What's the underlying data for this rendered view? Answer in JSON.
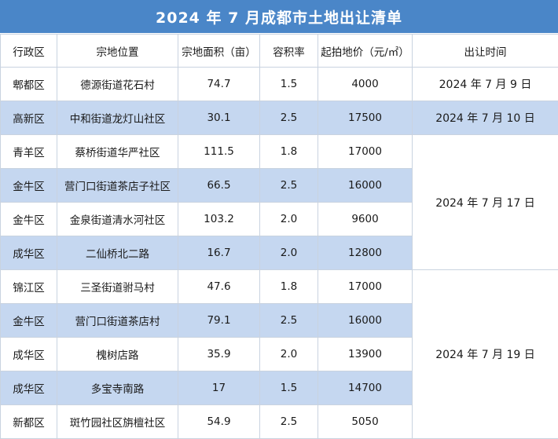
{
  "title": "2024 年 7 月成都市土地出让清单",
  "headers": [
    "行政区",
    "宗地位置",
    "宗地面积（亩）",
    "容积率",
    "起拍地价（元/㎡）",
    "出让时间"
  ],
  "rows": [
    {
      "district": "郫都区",
      "location": "德源街道花石村",
      "area": "74.7",
      "far": "1.5",
      "price": "4000"
    },
    {
      "district": "高新区",
      "location": "中和街道龙灯山社区",
      "area": "30.1",
      "far": "2.5",
      "price": "17500"
    },
    {
      "district": "青羊区",
      "location": "蔡桥街道华严社区",
      "area": "111.5",
      "far": "1.8",
      "price": "17000"
    },
    {
      "district": "金牛区",
      "location": "营门口街道茶店子社区",
      "area": "66.5",
      "far": "2.5",
      "price": "16000"
    },
    {
      "district": "金牛区",
      "location": "金泉街道清水河社区",
      "area": "103.2",
      "far": "2.0",
      "price": "9600"
    },
    {
      "district": "成华区",
      "location": "二仙桥北二路",
      "area": "16.7",
      "far": "2.0",
      "price": "12800"
    },
    {
      "district": "锦江区",
      "location": "三圣街道驸马村",
      "area": "47.6",
      "far": "1.8",
      "price": "17000"
    },
    {
      "district": "金牛区",
      "location": "营门口街道茶店村",
      "area": "79.1",
      "far": "2.5",
      "price": "16000"
    },
    {
      "district": "成华区",
      "location": "槐树店路",
      "area": "35.9",
      "far": "2.0",
      "price": "13900"
    },
    {
      "district": "成华区",
      "location": "多宝寺南路",
      "area": "17",
      "far": "1.5",
      "price": "14700"
    },
    {
      "district": "新都区",
      "location": "斑竹园社区旃檀社区",
      "area": "54.9",
      "far": "2.5",
      "price": "5050"
    }
  ],
  "dates": [
    "2024 年 7 月 9 日",
    "2024 年 7 月 10 日",
    "2024 年 7 月 17 日",
    "2024 年 7 月 19 日"
  ],
  "colors": {
    "title_bg": "#4a86c8",
    "stripe": "#c5d7f0",
    "border": "#c9d3e0"
  }
}
